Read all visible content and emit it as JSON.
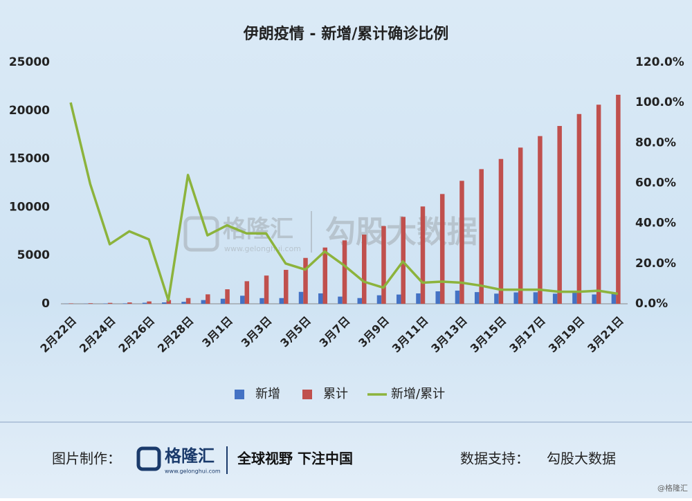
{
  "chart_data": {
    "type": "bar_line",
    "title": "伊朗疫情 - 新增/累计确诊比例",
    "categories": [
      "2月22日",
      null,
      "2月24日",
      null,
      "2月26日",
      null,
      "2月28日",
      null,
      "3月1日",
      null,
      "3月3日",
      null,
      "3月5日",
      null,
      "3月7日",
      null,
      "3月9日",
      null,
      "3月11日",
      null,
      "3月13日",
      null,
      "3月15日",
      null,
      "3月17日",
      null,
      "3月19日",
      null,
      "3月21日"
    ],
    "series": [
      {
        "name": "新增",
        "color": "#4472c4",
        "type": "bar",
        "values": [
          15,
          18,
          34,
          44,
          106,
          143,
          205,
          385,
          523,
          835,
          586,
          591,
          1234,
          1076,
          743,
          595,
          881,
          958,
          1075,
          1289,
          1365,
          1209,
          1053,
          1178,
          1192,
          1046,
          1237,
          966,
          1028
        ]
      },
      {
        "name": "累计",
        "color": "#c0504d",
        "type": "bar",
        "values": [
          43,
          61,
          95,
          139,
          245,
          388,
          593,
          978,
          1501,
          2336,
          2922,
          3513,
          4747,
          5823,
          6566,
          7161,
          8042,
          9000,
          10075,
          11364,
          12729,
          13938,
          14991,
          16169,
          17361,
          18407,
          19644,
          20610,
          21638
        ]
      },
      {
        "name": "新增/累计",
        "color": "#8cb33c",
        "type": "line",
        "axis": "y2",
        "values": [
          100,
          59.5,
          29.6,
          36,
          32,
          1.7,
          64,
          34,
          39,
          35,
          35,
          20,
          17,
          26,
          19,
          11,
          8,
          21,
          10.5,
          11,
          10.5,
          9,
          7,
          7,
          7,
          6,
          6,
          6.5,
          5
        ]
      }
    ],
    "ylim": [
      0,
      25000
    ],
    "yticks": [
      0,
      5000,
      10000,
      15000,
      20000,
      25000
    ],
    "y2lim": [
      0,
      120
    ],
    "y2ticks": [
      {
        "value": 0,
        "label": "0.0%"
      },
      {
        "value": 20,
        "label": "20.0%"
      },
      {
        "value": 40,
        "label": "40.0%"
      },
      {
        "value": 60,
        "label": "60.0%"
      },
      {
        "value": 80,
        "label": "80.0%"
      },
      {
        "value": 100,
        "label": "100.0%"
      },
      {
        "value": 120,
        "label": "120.0%"
      }
    ],
    "legend": "bottom"
  },
  "watermark": {
    "brand": "格隆汇",
    "url": "www.gelonghui.com",
    "data": "勾股大数据"
  },
  "footer": {
    "made_by": "图片制作：",
    "brand": "格隆汇",
    "brand_url": "www.gelonghui.com",
    "slogan": "全球视野 下注中国",
    "support": "数据支持：",
    "source": "勾股大数据",
    "mark": "@格隆汇"
  }
}
